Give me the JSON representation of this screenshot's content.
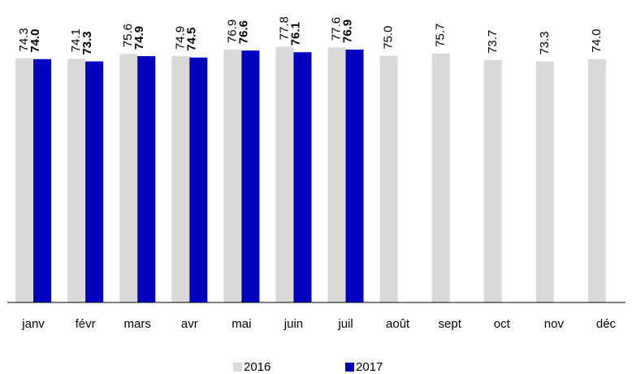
{
  "chart_data": {
    "type": "bar",
    "categories": [
      "janv",
      "févr",
      "mars",
      "avr",
      "mai",
      "juin",
      "juil",
      "août",
      "sept",
      "oct",
      "nov",
      "déc"
    ],
    "series": [
      {
        "name": "2016",
        "color": "#d9d9d9",
        "values": [
          74.3,
          74.1,
          75.6,
          74.9,
          76.9,
          77.8,
          77.6,
          75.0,
          75.7,
          73.7,
          73.3,
          74.0
        ],
        "value_labels": [
          "74.3",
          "74.1",
          "75.6",
          "74.9",
          "76.9",
          "77.8",
          "77.6",
          "75.0",
          "75.7",
          "73.7",
          "73.3",
          "74.0"
        ]
      },
      {
        "name": "2017",
        "color": "#0000c0",
        "values": [
          74.0,
          73.3,
          74.9,
          74.5,
          76.6,
          76.1,
          76.9,
          null,
          null,
          null,
          null,
          null
        ],
        "value_labels": [
          "74.0",
          "73.3",
          "74.9",
          "74.5",
          "76.6",
          "76.1",
          "76.9",
          null,
          null,
          null,
          null,
          null
        ]
      }
    ],
    "ylim": [
      0,
      90
    ]
  }
}
